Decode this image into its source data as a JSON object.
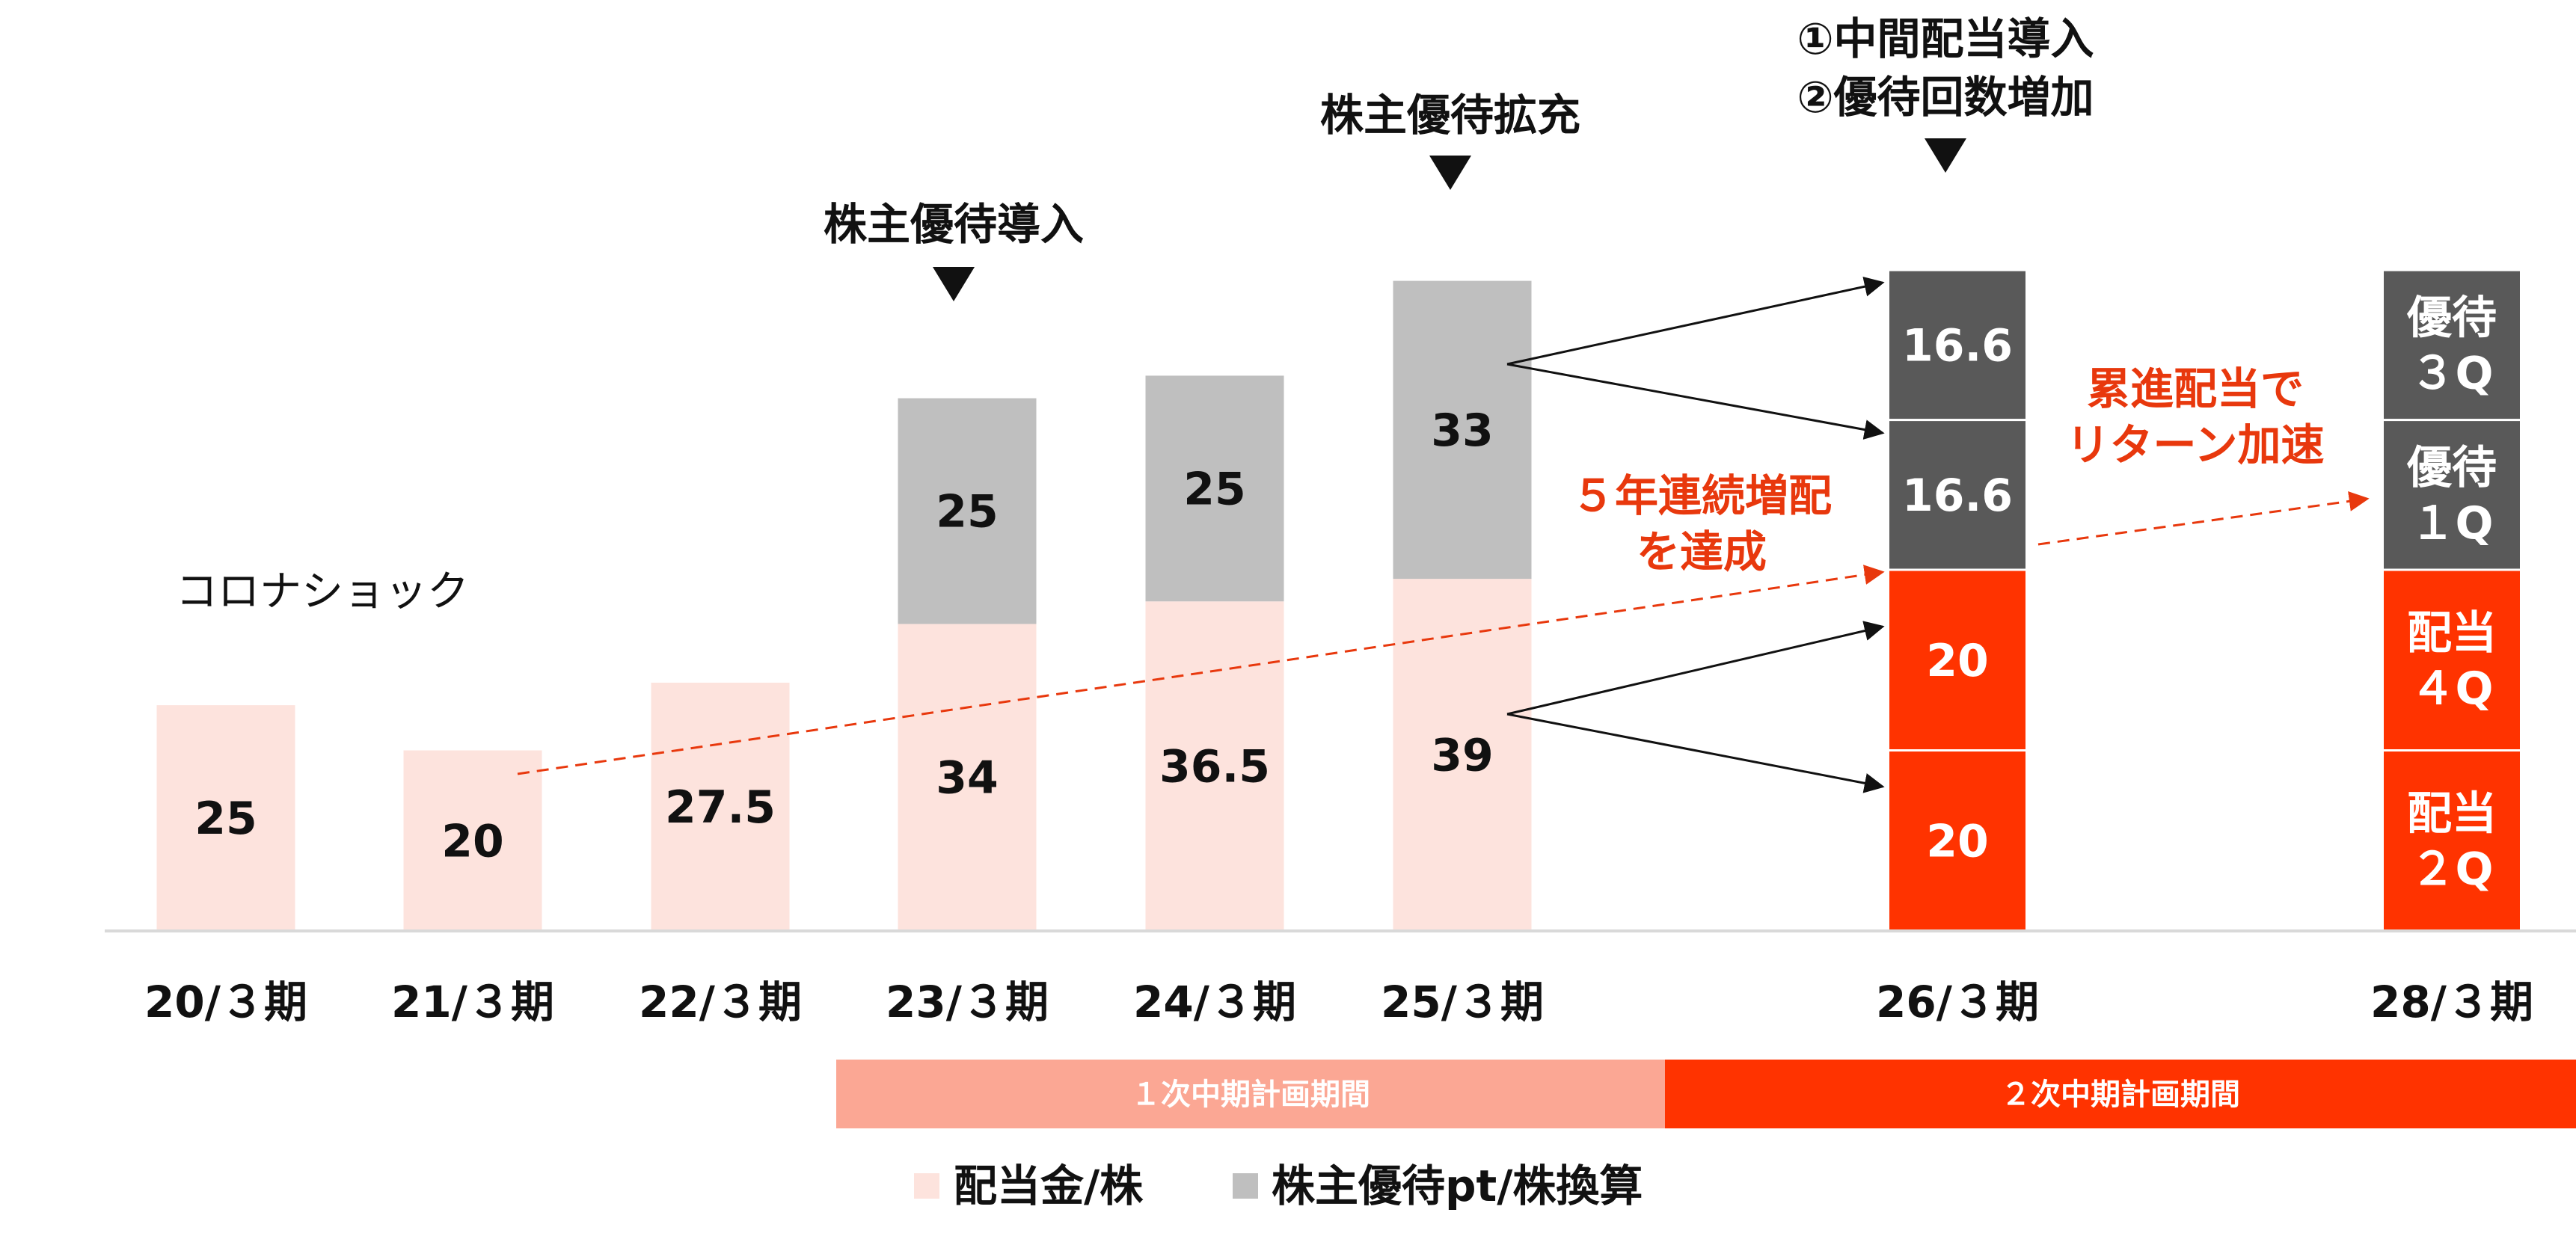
{
  "chart_data": {
    "type": "bar",
    "stacked": true,
    "categories": [
      "20/３期",
      "21/３期",
      "22/３期",
      "23/３期",
      "24/３期",
      "25/３期",
      "26/３期",
      "28/３期"
    ],
    "series": [
      {
        "name": "配当金/株",
        "values": [
          25,
          20,
          27.5,
          34,
          36.5,
          39,
          40,
          40
        ]
      },
      {
        "name": "株主優待pt/株換算",
        "values": [
          null,
          null,
          null,
          25,
          25,
          33,
          33.2,
          33.2
        ]
      }
    ],
    "data_labels": {
      "0": [
        "25"
      ],
      "1": [
        "20"
      ],
      "2": [
        "27.5"
      ],
      "3": [
        "34",
        "25"
      ],
      "4": [
        "36.5",
        "25"
      ],
      "5": [
        "39",
        "33"
      ],
      "6": [
        "20",
        "20",
        "16.6",
        "16.6"
      ],
      "7": [
        "配当\n２Q",
        "配当\n４Q",
        "優待\n１Q",
        "優待\n３Q"
      ]
    },
    "ylim": [
      0,
      80
    ],
    "grid": false,
    "legend_position": "bottom",
    "annotations": {
      "corona": "コロナショック",
      "event_23": "株主優待導入",
      "event_25": "株主優待拡充",
      "event_26_line1": "①中間配当導入",
      "event_26_line2": "②優待回数増加",
      "increase_line1": "５年連続増配",
      "increase_line2": "を達成",
      "progressive_line1": "累進配当で",
      "progressive_line2": "リターン加速"
    },
    "periods": [
      {
        "label": "１次中期計画期間",
        "color": "#fba794"
      },
      {
        "label": "２次中期計画期間",
        "color": "#ff3300"
      }
    ],
    "colors": {
      "dividend_light": "#fde3dd",
      "dividend_strong": "#ff3300",
      "benefit_light": "#bfbfbf",
      "benefit_dark": "#595959",
      "accent_red": "#e8380d"
    }
  }
}
